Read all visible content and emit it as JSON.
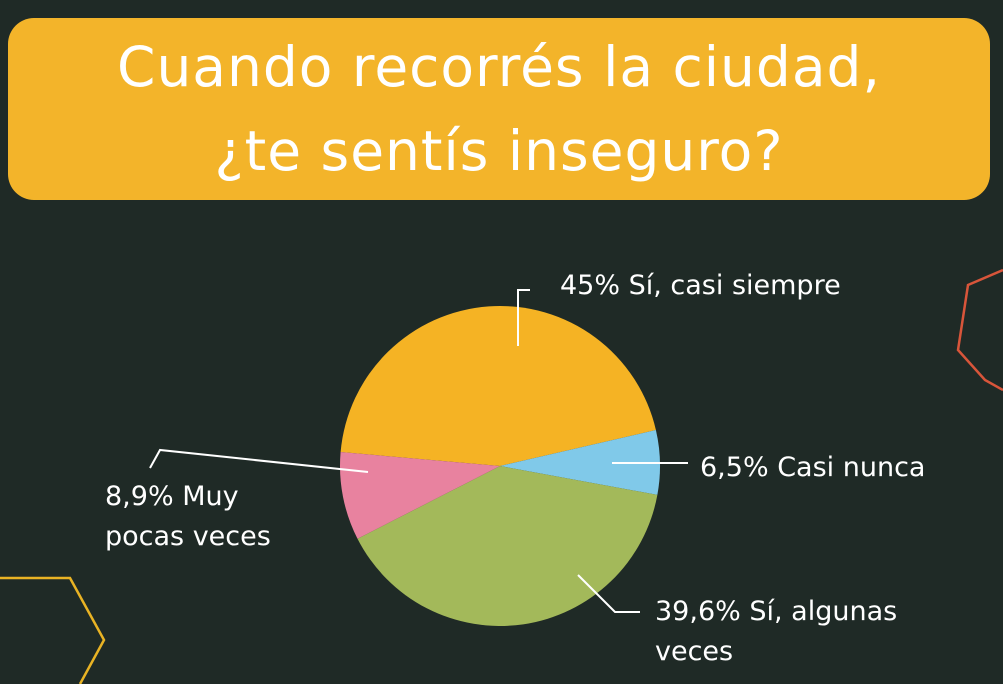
{
  "chart_data": {
    "type": "pie",
    "title": "Cuando recorrés la ciudad, ¿te sentís inseguro?",
    "categories": [
      "Sí, casi siempre",
      "Casi nunca",
      "Sí, algunas veces",
      "Muy pocas veces"
    ],
    "values": [
      45,
      6.5,
      39.6,
      8.9
    ],
    "value_labels": [
      "45%",
      "6,5%",
      "39,6%",
      "8,9%"
    ],
    "colors": [
      "#f5b324",
      "#80c9e9",
      "#a3b95a",
      "#e8829f"
    ]
  }
}
